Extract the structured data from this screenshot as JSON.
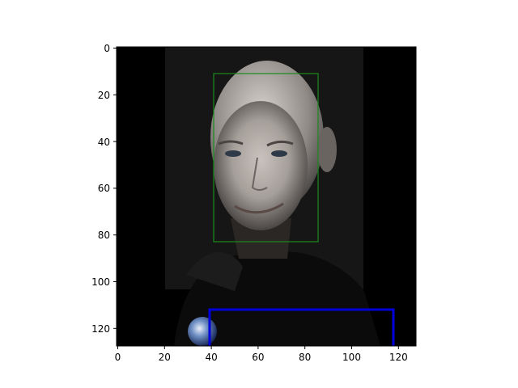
{
  "image_description": {
    "subject": "grayscale-toned portrait photo of a bald man smiling, wearing a dark jacket, dark background",
    "extras": [
      "small globe/earth photo fragment at bottom-left",
      "green face bounding box",
      "blue partial bounding box at bottom"
    ]
  },
  "axes": {
    "x_ticks": [
      "0",
      "20",
      "40",
      "60",
      "80",
      "100",
      "120"
    ],
    "y_ticks": [
      "0",
      "20",
      "40",
      "60",
      "80",
      "100",
      "120"
    ],
    "xlim": [
      0,
      128
    ],
    "ylim_top_to_bottom": [
      0,
      128
    ]
  },
  "boxes": [
    {
      "name": "face-box",
      "color": "#1a8a1a",
      "x0": 41,
      "y0": 11,
      "x1": 86,
      "y1": 83
    },
    {
      "name": "blue-box",
      "color": "#0000dd",
      "x0": 39,
      "y0": 112,
      "x1": 118,
      "y1": 128
    }
  ],
  "colors": {
    "background": "#000000",
    "photo_bg": "#161616",
    "face_box": "#1a8a1a",
    "blue_box": "#0000dd"
  }
}
